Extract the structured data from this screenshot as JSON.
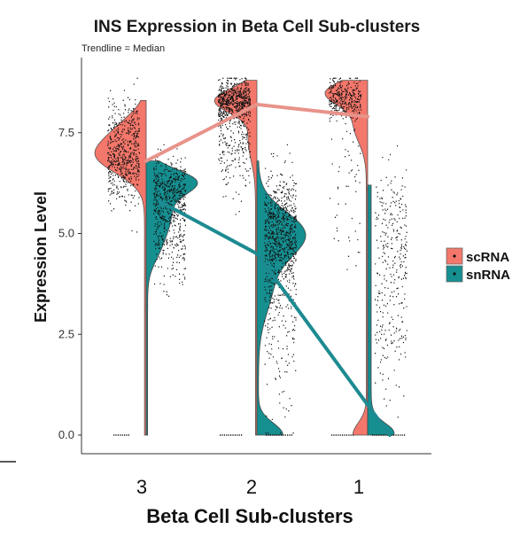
{
  "chart_data": {
    "type": "split-violin",
    "title": "INS Expression in Beta Cell Sub-clusters",
    "subtitle": "Trendline = Median",
    "xlabel": "Beta Cell Sub-clusters",
    "ylabel": "Expression Level",
    "categories": [
      "3",
      "2",
      "1"
    ],
    "ylim": [
      -0.4,
      9.0
    ],
    "yticks": [
      0.0,
      2.5,
      5.0,
      7.5
    ],
    "ytick_labels": [
      "0.0",
      "2.5",
      "5.0",
      "7.5"
    ],
    "grid": false,
    "legend_position": "right",
    "series": [
      {
        "name": "scRNA",
        "color": "#f4776b",
        "median_trend": [
          6.8,
          8.2,
          7.9
        ],
        "data_max": [
          8.3,
          8.8,
          8.8
        ]
      },
      {
        "name": "snRNA",
        "color": "#168f91",
        "median_trend": [
          5.8,
          4.5,
          0.0
        ],
        "data_max": [
          6.8,
          6.8,
          6.2
        ]
      }
    ]
  }
}
